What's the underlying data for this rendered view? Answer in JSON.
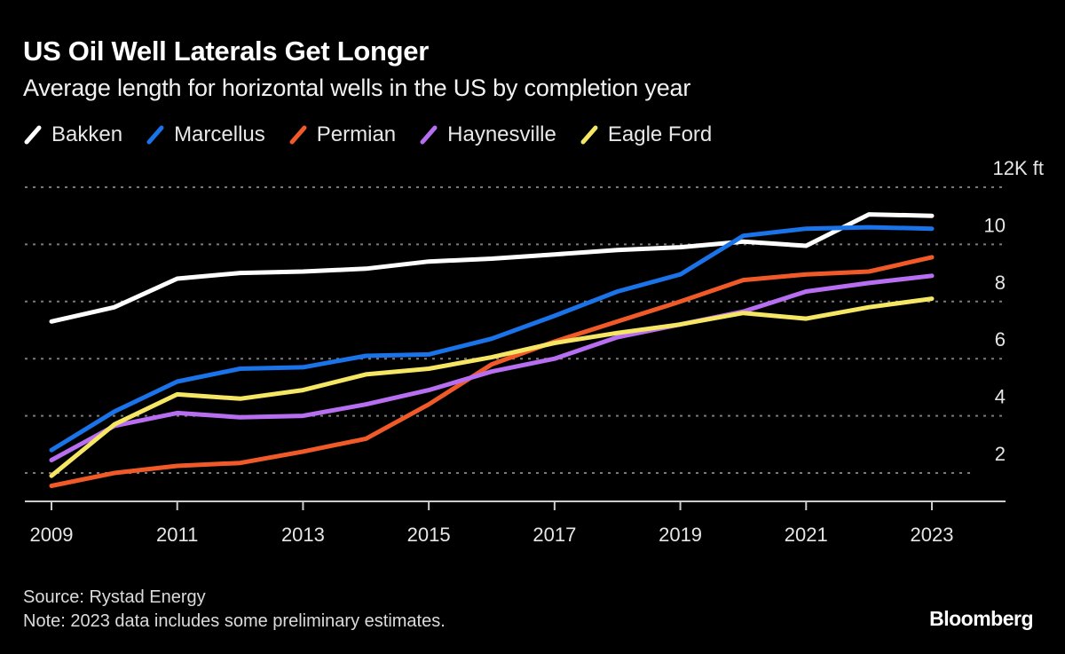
{
  "chart_data": {
    "type": "line",
    "title": "US Oil Well Laterals Get Longer",
    "subtitle": "Average length for horizontal wells in the US by completion year",
    "xlabel": "",
    "ylabel": "",
    "y_unit_label": "12K ft",
    "ylim": [
      1,
      12
    ],
    "y_ticks": [
      2,
      4,
      6,
      8,
      10,
      12
    ],
    "y_tick_labels": [
      "2",
      "4",
      "6",
      "8",
      "10",
      "12K ft"
    ],
    "x": [
      2009,
      2010,
      2011,
      2012,
      2013,
      2014,
      2015,
      2016,
      2017,
      2018,
      2019,
      2020,
      2021,
      2022,
      2023
    ],
    "x_tick_labels": [
      "2009",
      "2011",
      "2013",
      "2015",
      "2017",
      "2019",
      "2021",
      "2023"
    ],
    "grid": true,
    "legend_position": "top-left",
    "series": [
      {
        "name": "Bakken",
        "color": "#ffffff",
        "values": [
          7.3,
          7.8,
          8.8,
          9.0,
          9.05,
          9.15,
          9.4,
          9.5,
          9.65,
          9.8,
          9.9,
          10.1,
          9.95,
          11.05,
          11.0
        ]
      },
      {
        "name": "Marcellus",
        "color": "#1a73e8",
        "values": [
          2.8,
          4.15,
          5.2,
          5.65,
          5.7,
          6.1,
          6.15,
          6.7,
          7.5,
          8.35,
          8.95,
          10.3,
          10.55,
          10.6,
          10.55
        ]
      },
      {
        "name": "Permian",
        "color": "#f05a28",
        "values": [
          1.55,
          2.0,
          2.25,
          2.35,
          2.75,
          3.2,
          4.4,
          5.8,
          6.6,
          7.3,
          8.0,
          8.75,
          8.95,
          9.05,
          9.55
        ]
      },
      {
        "name": "Haynesville",
        "color": "#b86ef0",
        "values": [
          2.45,
          3.65,
          4.1,
          3.95,
          4.0,
          4.4,
          4.9,
          5.55,
          6.0,
          6.75,
          7.2,
          7.65,
          8.35,
          8.65,
          8.9
        ]
      },
      {
        "name": "Eagle Ford",
        "color": "#f5e663",
        "values": [
          1.9,
          3.7,
          4.75,
          4.6,
          4.9,
          5.45,
          5.65,
          6.05,
          6.55,
          6.9,
          7.2,
          7.6,
          7.4,
          7.8,
          8.1
        ]
      }
    ]
  },
  "footer": {
    "source": "Source: Rystad Energy",
    "note": "Note: 2023 data includes some preliminary estimates.",
    "brand": "Bloomberg"
  },
  "colors": {
    "background": "#000000",
    "gridline": "#7a7a7a",
    "axis": "#cccccc"
  }
}
